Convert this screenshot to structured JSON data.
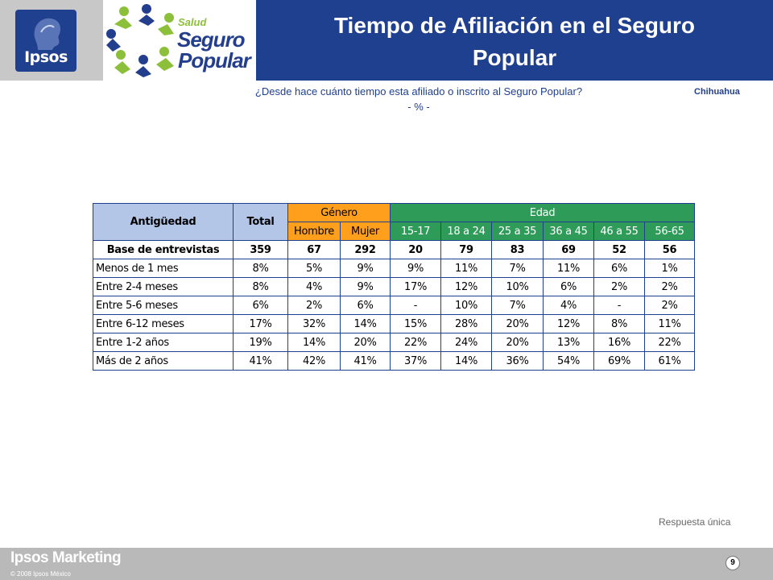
{
  "header": {
    "ipsos_logo_text": "Ipsos",
    "program_logo": {
      "line1": "Salud",
      "line2": "Seguro",
      "line3": "Popular"
    },
    "title_line1": "Tiempo de Afiliación en el Seguro",
    "title_line2": "Popular"
  },
  "question": {
    "text": "¿Desde hace cuánto tiempo esta afiliado o inscrito al Seguro Popular?",
    "unit": "- % -"
  },
  "region": "Chihuahua",
  "table": {
    "header": {
      "antiguedad": "Antigüedad",
      "total": "Total",
      "genero": "Género",
      "edad": "Edad",
      "hombre": "Hombre",
      "mujer": "Mujer",
      "age_groups": [
        "15-17",
        "18 a 24",
        "25 a 35",
        "36 a 45",
        "46 a 55",
        "56-65"
      ]
    },
    "base": {
      "label": "Base de entrevistas",
      "values": [
        "359",
        "67",
        "292",
        "20",
        "79",
        "83",
        "69",
        "52",
        "56"
      ]
    },
    "rows": [
      {
        "label": "Menos de 1 mes",
        "values": [
          "8%",
          "5%",
          "9%",
          "9%",
          "11%",
          "7%",
          "11%",
          "6%",
          "1%"
        ]
      },
      {
        "label": "Entre 2-4 meses",
        "values": [
          "8%",
          "4%",
          "9%",
          "17%",
          "12%",
          "10%",
          "6%",
          "2%",
          "2%"
        ]
      },
      {
        "label": "Entre 5-6 meses",
        "values": [
          "6%",
          "2%",
          "6%",
          "-",
          "10%",
          "7%",
          "4%",
          "-",
          "2%"
        ]
      },
      {
        "label": "Entre 6-12 meses",
        "values": [
          "17%",
          "32%",
          "14%",
          "15%",
          "28%",
          "20%",
          "12%",
          "8%",
          "11%"
        ]
      },
      {
        "label": "Entre 1-2 años",
        "values": [
          "19%",
          "14%",
          "20%",
          "22%",
          "24%",
          "20%",
          "13%",
          "16%",
          "22%"
        ]
      },
      {
        "label": "Más de 2 años",
        "values": [
          "41%",
          "42%",
          "41%",
          "37%",
          "14%",
          "36%",
          "54%",
          "69%",
          "61%"
        ]
      }
    ]
  },
  "note": "Respuesta única",
  "footer": {
    "brand": "Ipsos Marketing",
    "copyright": "© 2008 Ipsos México",
    "page_number": "9"
  },
  "colors": {
    "navy": "#1f3f8f",
    "header_blue": "#b4c6e8",
    "genero_orange": "#ff9f1c",
    "edad_green": "#2e9b59",
    "footer_gray": "#b9b9b9"
  }
}
